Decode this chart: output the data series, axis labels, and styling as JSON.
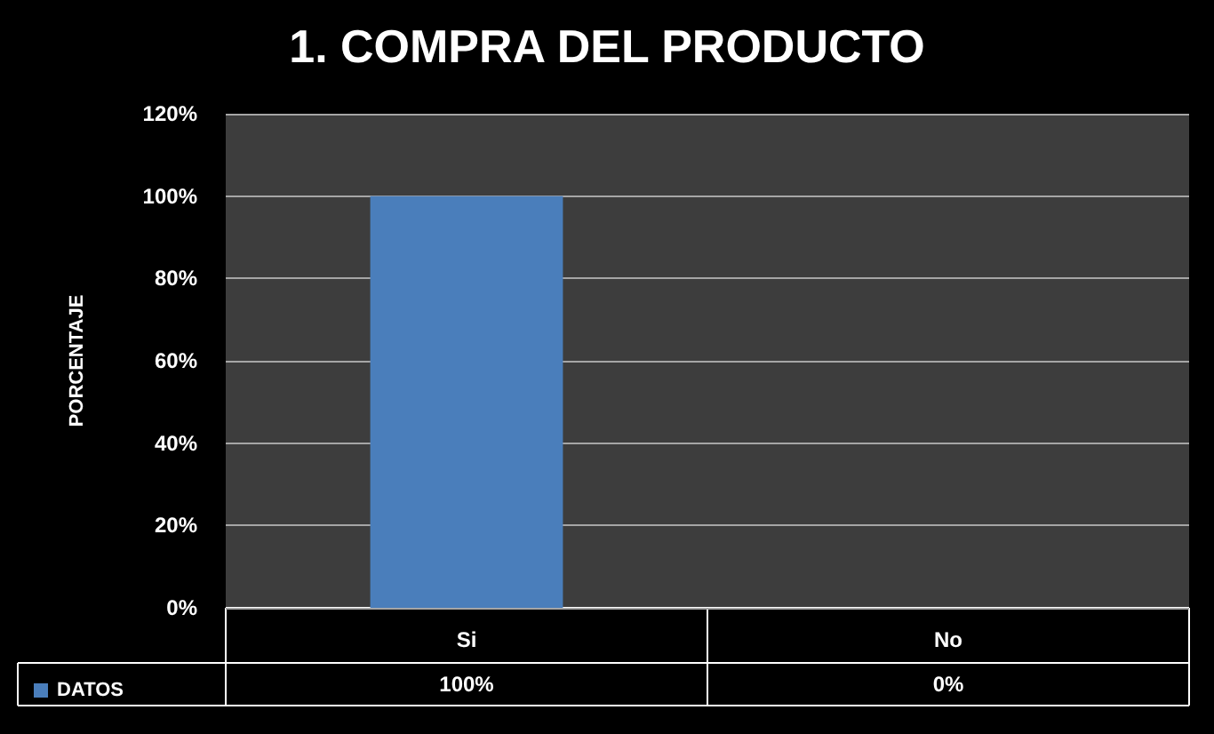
{
  "chart_data": {
    "type": "bar",
    "title": "1. COMPRA DEL PRODUCTO",
    "ylabel": "PORCENTAJE",
    "categories": [
      "Si",
      "No"
    ],
    "series": [
      {
        "name": "DATOS",
        "color": "#4a7ebb",
        "values": [
          100,
          0
        ],
        "value_labels": [
          "100%",
          "0%"
        ]
      }
    ],
    "ylim": [
      0,
      120
    ],
    "yticks": [
      {
        "value": 0,
        "label": "0%"
      },
      {
        "value": 20,
        "label": "20%"
      },
      {
        "value": 40,
        "label": "40%"
      },
      {
        "value": 60,
        "label": "60%"
      },
      {
        "value": 80,
        "label": "80%"
      },
      {
        "value": 100,
        "label": "100%"
      },
      {
        "value": 120,
        "label": "120%"
      }
    ],
    "grid": "y",
    "legend": "bottom left"
  }
}
